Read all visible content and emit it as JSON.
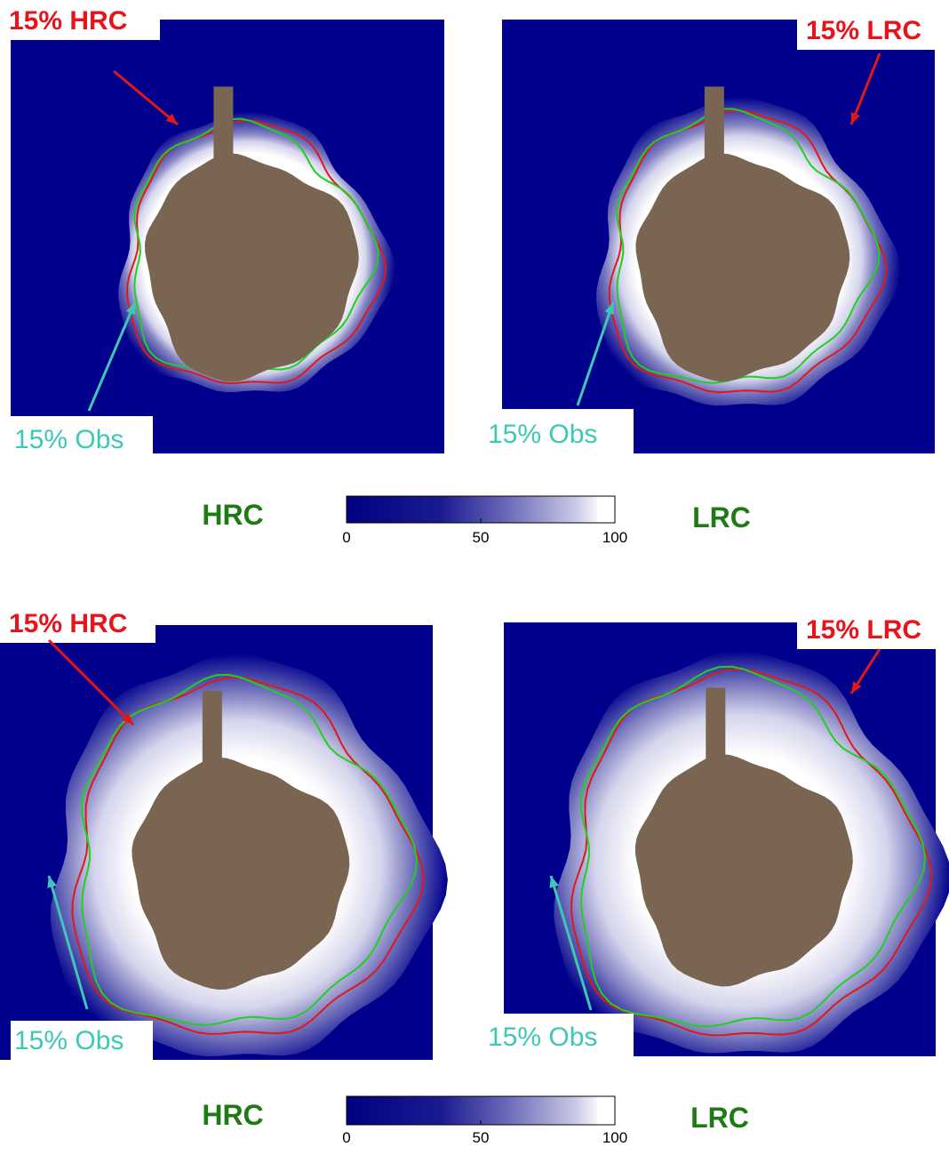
{
  "figure": {
    "rows": [
      {
        "panels": [
          {
            "model_label": "15% HRC",
            "obs_label": "15% Obs"
          },
          {
            "model_label": "15% LRC",
            "obs_label": "15% Obs"
          }
        ],
        "colorbar": {
          "range": [
            0,
            100
          ],
          "ticks": [
            0,
            50,
            100
          ]
        },
        "left_label": "HRC",
        "right_label": "LRC"
      },
      {
        "panels": [
          {
            "model_label": "15% HRC",
            "obs_label": "15% Obs"
          },
          {
            "model_label": "15% LRC",
            "obs_label": "15% Obs"
          }
        ],
        "colorbar": {
          "range": [
            0,
            100
          ],
          "ticks": [
            0,
            50,
            100
          ]
        },
        "left_label": "HRC",
        "right_label": "LRC"
      }
    ]
  }
}
